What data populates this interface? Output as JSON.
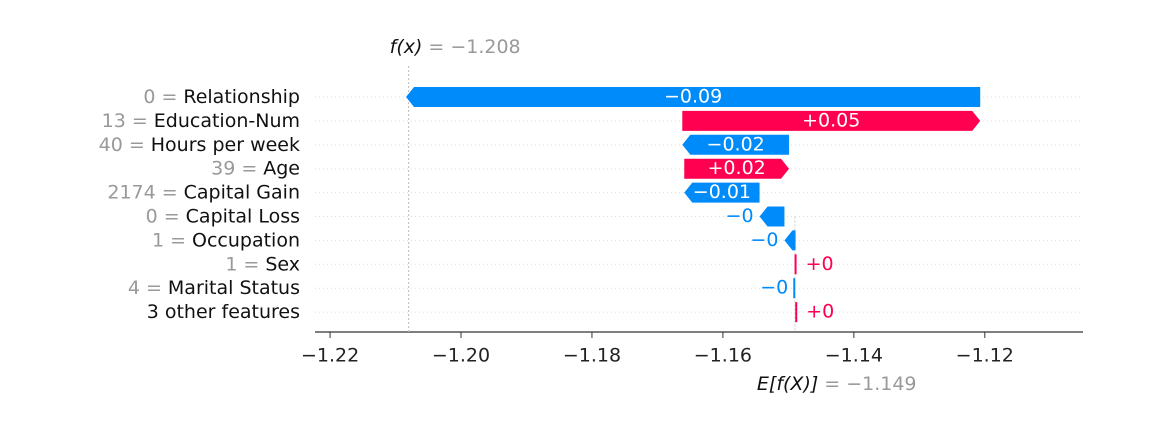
{
  "chart_data": {
    "type": "waterfall",
    "features": [
      "Relationship",
      "Education-Num",
      "Hours per week",
      "Age",
      "Capital Gain",
      "Capital Loss",
      "Occupation",
      "Sex",
      "Marital Status",
      "3 other features"
    ],
    "feature_values": [
      0,
      13,
      40,
      39,
      2174,
      0,
      1,
      1,
      4,
      null
    ],
    "values": [
      -0.0877,
      0.0455,
      -0.0163,
      0.016,
      -0.0115,
      -0.0038,
      -0.0017,
      0.0002,
      -0.0003,
      0.0002
    ],
    "value_labels": [
      "−0.09",
      "+0.05",
      "−0.02",
      "+0.02",
      "−0.01",
      "−0",
      "−0",
      "+0",
      "−0",
      "+0"
    ],
    "separator": "=",
    "base_label": "E[f(X)]",
    "base_value": -1.149,
    "base_value_label": "−1.149",
    "output_label": "f(x)",
    "output_value": -1.208,
    "output_value_label": "−1.208",
    "xlim": [
      -1.2223,
      -1.105
    ],
    "xticks": [
      {
        "value": -1.22,
        "label": "−1.22"
      },
      {
        "value": -1.2,
        "label": "−1.20"
      },
      {
        "value": -1.18,
        "label": "−1.18"
      },
      {
        "value": -1.16,
        "label": "−1.16"
      },
      {
        "value": -1.14,
        "label": "−1.14"
      },
      {
        "value": -1.12,
        "label": "−1.12"
      }
    ],
    "colors": {
      "positive": "#ff0051",
      "negative": "#008bfb"
    }
  }
}
